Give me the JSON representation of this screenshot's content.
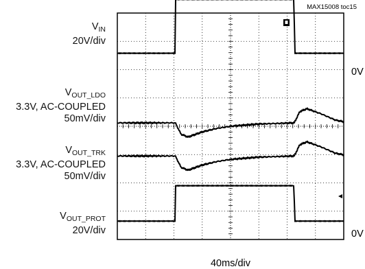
{
  "header": {
    "figure_id": "MAX15008 toc15"
  },
  "chart_data": {
    "type": "line",
    "title": "",
    "time_scale": "40ms/div",
    "grid": {
      "divisions_x": 8,
      "divisions_y": 8,
      "style": "dotted"
    },
    "channels": [
      {
        "name": "VIN",
        "name_main": "V",
        "name_sub": "IN",
        "scale": "20V/div",
        "coupling": "",
        "samples": [
          [
            0,
            0
          ],
          [
            2.05,
            0
          ],
          [
            2.06,
            1.9
          ],
          [
            6.25,
            1.9
          ],
          [
            6.26,
            0
          ],
          [
            8,
            0
          ]
        ]
      },
      {
        "name": "VOUT_LDO",
        "name_main": "V",
        "name_sub": "OUT_LDO",
        "scale": "50mV/div",
        "coupling": "3.3V, AC-COUPLED",
        "samples": [
          [
            0,
            0
          ],
          [
            2.05,
            0
          ],
          [
            2.25,
            -0.4
          ],
          [
            2.5,
            -0.5
          ],
          [
            3,
            -0.32
          ],
          [
            3.5,
            -0.2
          ],
          [
            4,
            -0.12
          ],
          [
            5,
            -0.04
          ],
          [
            6.25,
            0
          ],
          [
            6.45,
            0.4
          ],
          [
            6.7,
            0.5
          ],
          [
            7.2,
            0.32
          ],
          [
            7.7,
            0.1
          ],
          [
            8,
            0.04
          ]
        ]
      },
      {
        "name": "VOUT_TRK",
        "name_main": "V",
        "name_sub": "OUT_TRK",
        "scale": "50mV/div",
        "coupling": "3.3V, AC-COUPLED",
        "samples": [
          [
            0,
            0
          ],
          [
            2.05,
            0
          ],
          [
            2.25,
            -0.4
          ],
          [
            2.5,
            -0.5
          ],
          [
            3,
            -0.32
          ],
          [
            3.5,
            -0.2
          ],
          [
            4,
            -0.12
          ],
          [
            5,
            -0.04
          ],
          [
            6.25,
            0
          ],
          [
            6.45,
            0.4
          ],
          [
            6.7,
            0.5
          ],
          [
            7.2,
            0.32
          ],
          [
            7.7,
            0.1
          ],
          [
            8,
            0.04
          ]
        ]
      },
      {
        "name": "VOUT_PROT",
        "name_main": "V",
        "name_sub": "OUT_PROT",
        "scale": "20V/div",
        "coupling": "",
        "samples": [
          [
            0,
            0
          ],
          [
            2.05,
            0
          ],
          [
            2.06,
            1.25
          ],
          [
            6.25,
            1.25
          ],
          [
            6.26,
            0
          ],
          [
            8,
            0
          ]
        ]
      }
    ],
    "right_labels": [
      "0V",
      "0V"
    ],
    "xlabel": "40ms/div"
  }
}
